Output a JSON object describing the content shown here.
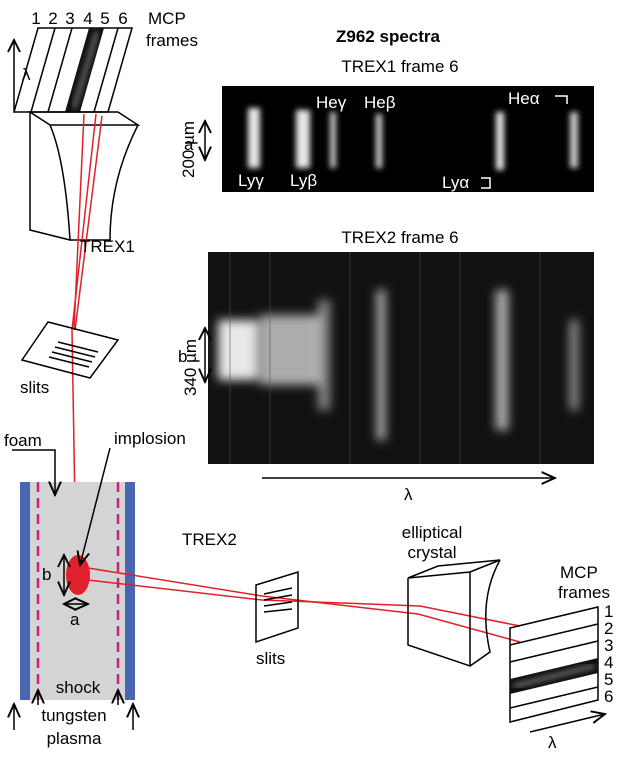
{
  "title": "Z962 spectra",
  "top_detector": {
    "frame_numbers": [
      "1",
      "2",
      "3",
      "4",
      "5",
      "6"
    ],
    "label": [
      "MCP",
      "frames"
    ],
    "lambda": "λ"
  },
  "trex1": {
    "label": "TREX1",
    "slits": "slits"
  },
  "target": {
    "foam": "foam",
    "implosion": "implosion",
    "b": "b",
    "a": "a",
    "shock": "shock",
    "tungsten": "tungsten",
    "plasma": "plasma"
  },
  "trex2": {
    "label": "TREX2",
    "slits": "slits",
    "crystal": [
      "elliptical",
      "crystal"
    ],
    "detector": {
      "label": [
        "MCP",
        "frames"
      ],
      "frame_numbers": [
        "1",
        "2",
        "3",
        "4",
        "5",
        "6"
      ],
      "lambda": "λ"
    }
  },
  "panel1": {
    "title": "TREX1 frame 6",
    "dim_label": "a",
    "scale": "200 µm",
    "lines": [
      "Heγ",
      "Heβ",
      "Heα",
      "Lyγ",
      "Lyβ",
      "Lyα"
    ]
  },
  "panel2": {
    "title": "TREX2 frame 6",
    "dim_label": "b",
    "scale": "340 µm",
    "lambda": "λ"
  }
}
